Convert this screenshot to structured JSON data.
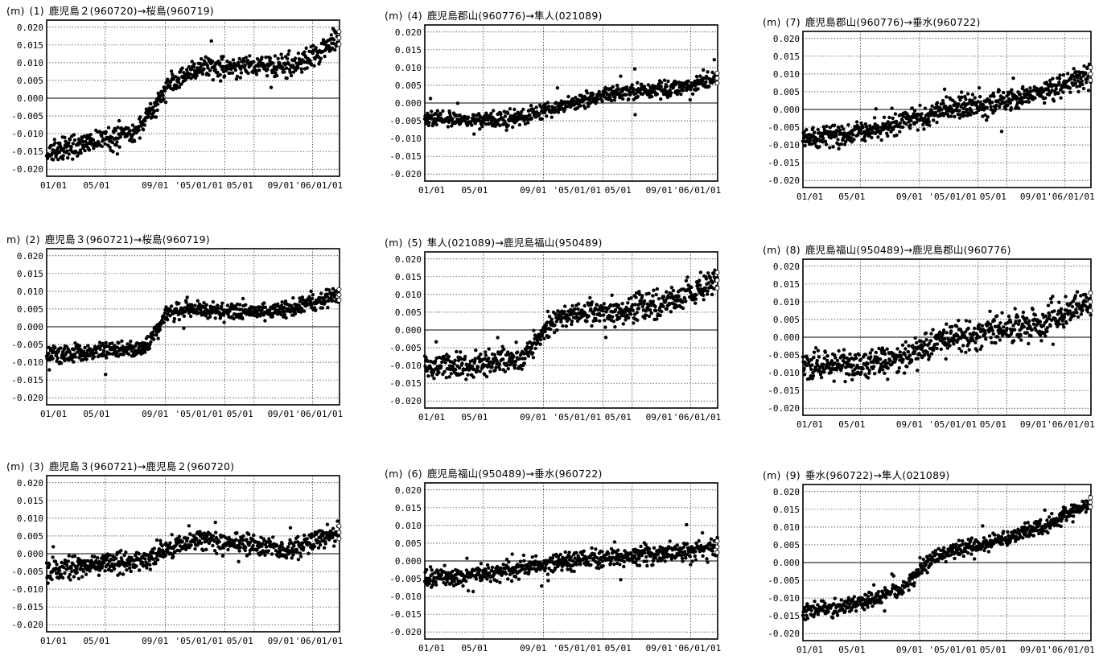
{
  "chart_data": [
    {
      "type": "scatter",
      "panel": "(1)",
      "unit": "(m)",
      "title": "鹿児島２(960720)→桜島(960719)",
      "yticks": [
        "0.020",
        "0.015",
        "0.010",
        "0.005",
        "0.000",
        "-0.005",
        "-0.010",
        "-0.015",
        "-0.020"
      ],
      "xticks": [
        "01/01",
        "05/01",
        "09/01",
        "'05/01/01",
        "05/01",
        "09/01",
        "'06/01/01"
      ],
      "ylim": [
        -0.022,
        0.022
      ],
      "grid": true,
      "zero_line": true,
      "trend": [
        [
          0,
          -0.016
        ],
        [
          90,
          -0.012
        ],
        [
          180,
          -0.01
        ],
        [
          215,
          -0.004
        ],
        [
          250,
          0.004
        ],
        [
          300,
          0.008
        ],
        [
          400,
          0.009
        ],
        [
          500,
          0.009
        ],
        [
          560,
          0.013
        ],
        [
          600,
          0.017
        ]
      ],
      "noise": 0.0018
    },
    {
      "type": "scatter",
      "panel": "(2)",
      "unit": "m)",
      "title": "鹿児島３(960721)→桜島(960719)",
      "yticks": [
        "0.020",
        "0.015",
        "0.010",
        "0.005",
        "0.000",
        "-0.005",
        "-0.010",
        "-0.015",
        "-0.020"
      ],
      "xticks": [
        "01/01",
        "05/01",
        "09/01",
        "'05/01/01",
        "05/01",
        "09/01",
        "'06/01/01"
      ],
      "ylim": [
        -0.022,
        0.022
      ],
      "grid": true,
      "zero_line": true,
      "trend": [
        [
          0,
          -0.008
        ],
        [
          100,
          -0.007
        ],
        [
          200,
          -0.006
        ],
        [
          250,
          0.004
        ],
        [
          300,
          0.005
        ],
        [
          400,
          0.004
        ],
        [
          500,
          0.005
        ],
        [
          600,
          0.009
        ]
      ],
      "noise": 0.0015
    },
    {
      "type": "scatter",
      "panel": "(3)",
      "unit": "(m)",
      "title": "鹿児島３(960721)→鹿児島２(960720)",
      "yticks": [
        "0.020",
        "0.015",
        "0.010",
        "0.005",
        "0.000",
        "-0.005",
        "-0.010",
        "-0.015",
        "-0.020"
      ],
      "xticks": [
        "01/01",
        "05/01",
        "09/01",
        "'05/01/01",
        "05/01",
        "09/01",
        "'06/01/01"
      ],
      "ylim": [
        -0.022,
        0.022
      ],
      "grid": true,
      "zero_line": true,
      "trend": [
        [
          0,
          -0.005
        ],
        [
          100,
          -0.003
        ],
        [
          200,
          -0.002
        ],
        [
          300,
          0.004
        ],
        [
          400,
          0.003
        ],
        [
          500,
          0.001
        ],
        [
          600,
          0.006
        ]
      ],
      "noise": 0.0018
    },
    {
      "type": "scatter",
      "panel": "(4)",
      "unit": "(m)",
      "title": "鹿児島郡山(960776)→隼人(021089)",
      "yticks": [
        "0.020",
        "0.015",
        "0.010",
        "0.005",
        "0.000",
        "-0.005",
        "-0.010",
        "-0.015",
        "-0.020"
      ],
      "xticks": [
        "01/01",
        "05/01",
        "09/01",
        "'05/01/01",
        "05/01",
        "09/01",
        "'06/01/01"
      ],
      "ylim": [
        -0.022,
        0.022
      ],
      "grid": true,
      "zero_line": true,
      "trend": [
        [
          0,
          -0.004
        ],
        [
          100,
          -0.005
        ],
        [
          200,
          -0.004
        ],
        [
          300,
          0.0
        ],
        [
          400,
          0.003
        ],
        [
          500,
          0.004
        ],
        [
          600,
          0.007
        ]
      ],
      "noise": 0.0014
    },
    {
      "type": "scatter",
      "panel": "(5)",
      "unit": "(m)",
      "title": "隼人(021089)→鹿児島福山(950489)",
      "yticks": [
        "0.020",
        "0.015",
        "0.010",
        "0.005",
        "0.000",
        "-0.005",
        "-0.010",
        "-0.015",
        "-0.020"
      ],
      "xticks": [
        "01/01",
        "05/01",
        "09/01",
        "'05/01/01",
        "05/01",
        "09/01",
        "'06/01/01"
      ],
      "ylim": [
        -0.022,
        0.022
      ],
      "grid": true,
      "zero_line": true,
      "trend": [
        [
          0,
          -0.01
        ],
        [
          100,
          -0.01
        ],
        [
          200,
          -0.008
        ],
        [
          260,
          0.002
        ],
        [
          300,
          0.004
        ],
        [
          400,
          0.005
        ],
        [
          500,
          0.008
        ],
        [
          600,
          0.014
        ]
      ],
      "noise": 0.0022
    },
    {
      "type": "scatter",
      "panel": "(6)",
      "unit": "(m)",
      "title": "鹿児島福山(950489)→垂水(960722)",
      "yticks": [
        "0.020",
        "0.015",
        "0.010",
        "0.005",
        "0.000",
        "-0.005",
        "-0.010",
        "-0.015",
        "-0.020"
      ],
      "xticks": [
        "01/01",
        "05/01",
        "09/01",
        "'05/01/01",
        "05/01",
        "09/01",
        "'06/01/01"
      ],
      "ylim": [
        -0.022,
        0.022
      ],
      "grid": true,
      "zero_line": true,
      "trend": [
        [
          0,
          -0.005
        ],
        [
          100,
          -0.004
        ],
        [
          200,
          -0.002
        ],
        [
          300,
          0.0
        ],
        [
          400,
          0.001
        ],
        [
          500,
          0.002
        ],
        [
          600,
          0.004
        ]
      ],
      "noise": 0.0016
    },
    {
      "type": "scatter",
      "panel": "(7)",
      "unit": "(m)",
      "title": "鹿児島郡山(960776)→垂水(960722)",
      "yticks": [
        "0.020",
        "0.015",
        "0.010",
        "0.005",
        "0.000",
        "-0.005",
        "-0.010",
        "-0.015",
        "-0.020"
      ],
      "xticks": [
        "01/01",
        "05/01",
        "09/01",
        "'05/01/01",
        "05/01",
        "09/01",
        "'06/01/01"
      ],
      "ylim": [
        -0.022,
        0.022
      ],
      "grid": true,
      "zero_line": true,
      "trend": [
        [
          0,
          -0.008
        ],
        [
          100,
          -0.007
        ],
        [
          200,
          -0.004
        ],
        [
          300,
          0.0
        ],
        [
          400,
          0.002
        ],
        [
          500,
          0.005
        ],
        [
          600,
          0.01
        ]
      ],
      "noise": 0.0018
    },
    {
      "type": "scatter",
      "panel": "(8)",
      "unit": "(m)",
      "title": "鹿児島福山(950489)→鹿児島郡山(960776)",
      "yticks": [
        "0.020",
        "0.015",
        "0.010",
        "0.005",
        "0.000",
        "-0.005",
        "-0.010",
        "-0.015",
        "-0.020"
      ],
      "xticks": [
        "01/01",
        "05/01",
        "09/01",
        "'05/01/01",
        "05/01",
        "09/01",
        "'06/01/01"
      ],
      "ylim": [
        -0.022,
        0.022
      ],
      "grid": true,
      "zero_line": true,
      "trend": [
        [
          0,
          -0.008
        ],
        [
          100,
          -0.008
        ],
        [
          200,
          -0.006
        ],
        [
          300,
          0.0
        ],
        [
          400,
          0.002
        ],
        [
          500,
          0.004
        ],
        [
          600,
          0.01
        ]
      ],
      "noise": 0.0025
    },
    {
      "type": "scatter",
      "panel": "(9)",
      "unit": "(m)",
      "title": "垂水(960722)→隼人(021089)",
      "yticks": [
        "0.020",
        "0.015",
        "0.010",
        "0.005",
        "0.000",
        "-0.005",
        "-0.010",
        "-0.015",
        "-0.020"
      ],
      "xticks": [
        "01/01",
        "05/01",
        "09/01",
        "'05/01/01",
        "05/01",
        "09/01",
        "'06/01/01"
      ],
      "ylim": [
        -0.022,
        0.022
      ],
      "grid": true,
      "zero_line": true,
      "trend": [
        [
          0,
          -0.014
        ],
        [
          100,
          -0.012
        ],
        [
          200,
          -0.008
        ],
        [
          260,
          0.0
        ],
        [
          300,
          0.003
        ],
        [
          400,
          0.006
        ],
        [
          500,
          0.01
        ],
        [
          600,
          0.017
        ]
      ],
      "noise": 0.0013
    }
  ]
}
